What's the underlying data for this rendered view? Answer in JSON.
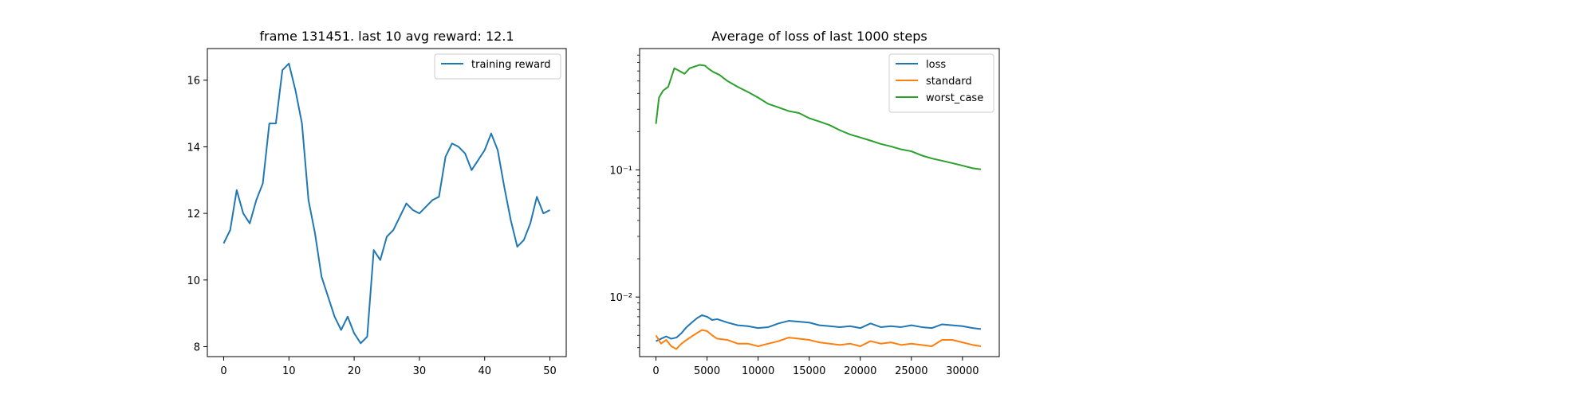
{
  "chart_data": [
    {
      "type": "line",
      "title": "frame 131451. last 10 avg reward: 12.1",
      "xlabel": "",
      "ylabel": "",
      "xlim": [
        -2.5,
        52.5
      ],
      "ylim": [
        7.7,
        16.95
      ],
      "y_scale": "linear",
      "x_ticks": [
        0,
        10,
        20,
        30,
        40,
        50
      ],
      "y_ticks": [
        8,
        10,
        12,
        14,
        16
      ],
      "legend": "top-right",
      "series": [
        {
          "name": "training reward",
          "color": "#1f77b4",
          "x": [
            0,
            1,
            2,
            3,
            4,
            5,
            6,
            7,
            8,
            9,
            10,
            11,
            12,
            13,
            14,
            15,
            16,
            17,
            18,
            19,
            20,
            21,
            22,
            23,
            24,
            25,
            26,
            27,
            28,
            29,
            30,
            31,
            32,
            33,
            34,
            35,
            36,
            37,
            38,
            39,
            40,
            41,
            42,
            43,
            44,
            45,
            46,
            47,
            48,
            49,
            50
          ],
          "values": [
            11.1,
            11.5,
            12.7,
            12.0,
            11.7,
            12.4,
            12.9,
            14.7,
            14.7,
            16.3,
            16.5,
            15.7,
            14.7,
            12.4,
            11.4,
            10.1,
            9.5,
            8.9,
            8.5,
            8.9,
            8.4,
            8.1,
            8.3,
            10.9,
            10.6,
            11.3,
            11.5,
            11.9,
            12.3,
            12.1,
            12.0,
            12.2,
            12.4,
            12.5,
            13.7,
            14.1,
            14.0,
            13.8,
            13.3,
            13.6,
            13.9,
            14.4,
            13.9,
            12.8,
            11.8,
            11.0,
            11.2,
            11.7,
            12.5,
            12.0,
            12.1
          ]
        }
      ]
    },
    {
      "type": "line",
      "title": "Average of loss of last 1000 steps",
      "xlabel": "",
      "ylabel": "",
      "xlim": [
        -1600,
        33600
      ],
      "ylim": [
        0.0034,
        0.9
      ],
      "y_scale": "log",
      "x_ticks": [
        0,
        5000,
        10000,
        15000,
        20000,
        25000,
        30000
      ],
      "y_ticks": [
        {
          "value": 0.01,
          "label": "10⁻²"
        },
        {
          "value": 0.1,
          "label": "10⁻¹"
        }
      ],
      "legend": "top-right",
      "series": [
        {
          "name": "loss",
          "color": "#1f77b4",
          "x": [
            0,
            500,
            1000,
            1500,
            2000,
            2500,
            3000,
            3500,
            4000,
            4500,
            5000,
            5500,
            6000,
            7000,
            8000,
            9000,
            10000,
            11000,
            12000,
            13000,
            14000,
            15000,
            16000,
            17000,
            18000,
            19000,
            20000,
            21000,
            22000,
            23000,
            24000,
            25000,
            26000,
            27000,
            28000,
            29000,
            30000,
            31000,
            31800
          ],
          "values": [
            0.0045,
            0.0047,
            0.0049,
            0.0047,
            0.0048,
            0.0052,
            0.0058,
            0.0063,
            0.0068,
            0.0072,
            0.007,
            0.0066,
            0.0067,
            0.0063,
            0.006,
            0.0059,
            0.0057,
            0.0058,
            0.0062,
            0.0065,
            0.0064,
            0.0063,
            0.006,
            0.0059,
            0.0058,
            0.0059,
            0.0057,
            0.0062,
            0.0058,
            0.0059,
            0.0058,
            0.006,
            0.0058,
            0.0057,
            0.0061,
            0.006,
            0.0059,
            0.0057,
            0.0056
          ]
        },
        {
          "name": "standard",
          "color": "#ff7f0e",
          "x": [
            0,
            500,
            1000,
            1500,
            2000,
            2500,
            3000,
            3500,
            4000,
            4500,
            5000,
            5500,
            6000,
            7000,
            8000,
            9000,
            10000,
            11000,
            12000,
            13000,
            14000,
            15000,
            16000,
            17000,
            18000,
            19000,
            20000,
            21000,
            22000,
            23000,
            24000,
            25000,
            26000,
            27000,
            28000,
            29000,
            30000,
            31000,
            31800
          ],
          "values": [
            0.005,
            0.0043,
            0.0046,
            0.0041,
            0.0039,
            0.0043,
            0.0046,
            0.0049,
            0.0052,
            0.0055,
            0.0054,
            0.005,
            0.0047,
            0.0046,
            0.0043,
            0.0043,
            0.0041,
            0.0043,
            0.0045,
            0.0048,
            0.0047,
            0.0046,
            0.0044,
            0.0043,
            0.0042,
            0.0043,
            0.0041,
            0.0045,
            0.0043,
            0.0044,
            0.0042,
            0.0043,
            0.0042,
            0.0041,
            0.0046,
            0.0046,
            0.0044,
            0.0042,
            0.0041
          ]
        },
        {
          "name": "worst_case",
          "color": "#2ca02c",
          "x": [
            0,
            300,
            700,
            1200,
            1800,
            2300,
            2800,
            3300,
            3800,
            4300,
            4800,
            5200,
            5600,
            6200,
            7000,
            8000,
            9000,
            10000,
            11000,
            12000,
            13000,
            14000,
            15000,
            16000,
            17000,
            18000,
            19000,
            20000,
            21000,
            22000,
            23000,
            24000,
            25000,
            26000,
            27000,
            28000,
            29000,
            30000,
            31000,
            31800
          ],
          "values": [
            0.23,
            0.37,
            0.42,
            0.45,
            0.63,
            0.6,
            0.57,
            0.63,
            0.65,
            0.67,
            0.66,
            0.62,
            0.59,
            0.56,
            0.5,
            0.45,
            0.41,
            0.37,
            0.33,
            0.31,
            0.29,
            0.28,
            0.255,
            0.24,
            0.225,
            0.205,
            0.19,
            0.18,
            0.17,
            0.16,
            0.153,
            0.145,
            0.14,
            0.13,
            0.123,
            0.118,
            0.113,
            0.108,
            0.103,
            0.101
          ]
        }
      ]
    }
  ]
}
